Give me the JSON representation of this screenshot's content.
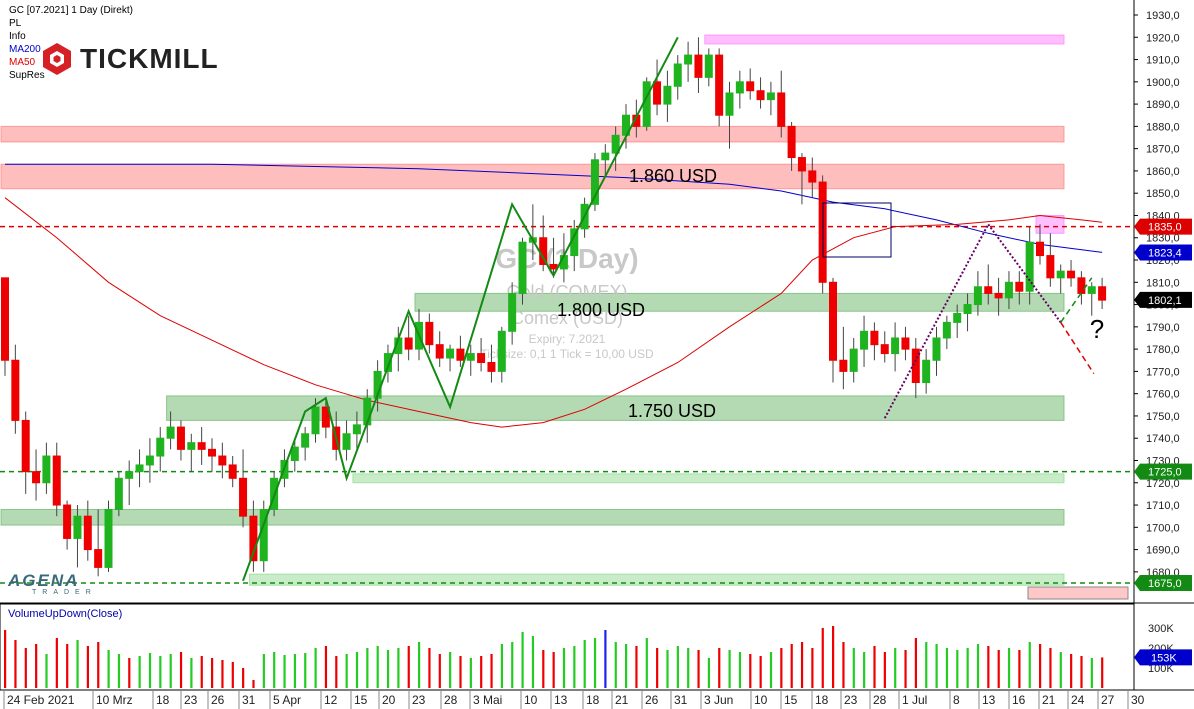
{
  "legend": {
    "instrument": "GC [07.2021] 1 Day (Direkt)",
    "items": [
      "PL",
      "Info",
      "MA200",
      "MA50",
      "SupRes"
    ],
    "colors": {
      "MA200": "#0000cc",
      "MA50": "#dd0000"
    }
  },
  "brand": {
    "name": "TICKMILL",
    "bottom_logo": "AGENA",
    "bottom_logo_sub": "TRADER"
  },
  "watermark": {
    "title": "GC (1 Day)",
    "subtitle": "Gold (COMEX)",
    "exchange": "Comex (USD)",
    "expiry": "Expiry: 7.2021",
    "tick": "Ticksize: 0,1  1 Tick = 10,00 USD"
  },
  "zone_labels": [
    "1.860 USD",
    "1.800 USD",
    "1.750 USD"
  ],
  "question_mark": "?",
  "price_axis": {
    "ticks": [
      "1930,0",
      "1920,0",
      "1910,0",
      "1900,0",
      "1890,0",
      "1880,0",
      "1870,0",
      "1860,0",
      "1850,0",
      "1840,0",
      "1830,0",
      "1820,0",
      "1810,0",
      "1800,0",
      "1790,0",
      "1780,0",
      "1770,0",
      "1760,0",
      "1750,0",
      "1740,0",
      "1730,0",
      "1720,0",
      "1710,0",
      "1700,0",
      "1690,0",
      "1680,0"
    ],
    "markers": [
      {
        "label": "1835,0",
        "price": 1835,
        "color": "#dd0000"
      },
      {
        "label": "1823,4",
        "price": 1823.4,
        "color": "#0000cc"
      },
      {
        "label": "1802,1",
        "price": 1802.1,
        "color": "#000000"
      },
      {
        "label": "1725,0",
        "price": 1725,
        "color": "#138a13"
      },
      {
        "label": "1675,0",
        "price": 1675,
        "color": "#138a13"
      }
    ]
  },
  "volume_panel": {
    "title": "VolumeUpDown(Close)",
    "ticks": [
      "300K",
      "200K",
      "100K"
    ],
    "marker": "153K",
    "marker_color": "#0000cc"
  },
  "date_axis": [
    "24 Feb 2021",
    "10 Mrz",
    "18",
    "23",
    "26",
    "31",
    "5 Apr",
    "12",
    "15",
    "20",
    "23",
    "28",
    "3 Mai",
    "10",
    "13",
    "18",
    "21",
    "26",
    "31",
    "3 Jun",
    "10",
    "15",
    "18",
    "23",
    "28",
    "1 Jul",
    "8",
    "13",
    "16",
    "21",
    "24",
    "27",
    "30"
  ],
  "chart_data": {
    "type": "candlestick",
    "title": "GC [07.2021] 1 Day (Direkt)",
    "ylim": [
      1672,
      1938
    ],
    "levels": [
      {
        "price": 1835,
        "style": "dashed",
        "color": "#dd0000"
      },
      {
        "price": 1725,
        "style": "dashed",
        "color": "#138a13"
      },
      {
        "price": 1675,
        "style": "dashed",
        "color": "#138a13"
      }
    ],
    "zones": [
      {
        "low": 1917,
        "high": 1921,
        "color": "#ff88ff",
        "from_bar": 68,
        "to_bar": 106
      },
      {
        "low": 1873,
        "high": 1880,
        "color": "#ff8888",
        "from_bar": 0,
        "to_bar": 106
      },
      {
        "low": 1852,
        "high": 1863,
        "color": "#ff8888",
        "from_bar": 0,
        "to_bar": 106
      },
      {
        "low": 1832,
        "high": 1840,
        "color": "#ff88ff",
        "from_bar": 100,
        "to_bar": 106
      },
      {
        "low": 1797,
        "high": 1805,
        "color": "#77bb77",
        "from_bar": 40,
        "to_bar": 106
      },
      {
        "low": 1748,
        "high": 1759,
        "color": "#77bb77",
        "from_bar": 16,
        "to_bar": 106
      },
      {
        "low": 1720,
        "high": 1724,
        "color": "#99dd99",
        "from_bar": 34,
        "to_bar": 106
      },
      {
        "low": 1701,
        "high": 1708,
        "color": "#77bb77",
        "from_bar": 0,
        "to_bar": 106
      },
      {
        "low": 1674,
        "high": 1679,
        "color": "#99dd99",
        "from_bar": 24,
        "to_bar": 106
      }
    ],
    "ohlc": [
      [
        1812,
        1812,
        1768,
        1775
      ],
      [
        1775,
        1782,
        1742,
        1748
      ],
      [
        1748,
        1752,
        1715,
        1725
      ],
      [
        1725,
        1735,
        1712,
        1720
      ],
      [
        1720,
        1738,
        1715,
        1732
      ],
      [
        1732,
        1738,
        1705,
        1710
      ],
      [
        1710,
        1712,
        1690,
        1695
      ],
      [
        1695,
        1710,
        1682,
        1705
      ],
      [
        1705,
        1712,
        1685,
        1690
      ],
      [
        1690,
        1708,
        1678,
        1682
      ],
      [
        1682,
        1712,
        1680,
        1708
      ],
      [
        1708,
        1725,
        1705,
        1722
      ],
      [
        1722,
        1730,
        1710,
        1725
      ],
      [
        1725,
        1735,
        1718,
        1728
      ],
      [
        1728,
        1740,
        1720,
        1732
      ],
      [
        1732,
        1745,
        1725,
        1740
      ],
      [
        1740,
        1752,
        1735,
        1745
      ],
      [
        1745,
        1748,
        1730,
        1735
      ],
      [
        1735,
        1742,
        1725,
        1738
      ],
      [
        1738,
        1745,
        1728,
        1735
      ],
      [
        1735,
        1740,
        1725,
        1732
      ],
      [
        1732,
        1738,
        1722,
        1728
      ],
      [
        1728,
        1732,
        1718,
        1722
      ],
      [
        1722,
        1735,
        1700,
        1705
      ],
      [
        1705,
        1712,
        1680,
        1685
      ],
      [
        1685,
        1712,
        1680,
        1708
      ],
      [
        1708,
        1725,
        1705,
        1722
      ],
      [
        1722,
        1735,
        1718,
        1730
      ],
      [
        1730,
        1740,
        1725,
        1736
      ],
      [
        1736,
        1745,
        1730,
        1742
      ],
      [
        1742,
        1758,
        1738,
        1754
      ],
      [
        1754,
        1758,
        1740,
        1745
      ],
      [
        1745,
        1752,
        1730,
        1735
      ],
      [
        1735,
        1748,
        1730,
        1742
      ],
      [
        1742,
        1752,
        1735,
        1746
      ],
      [
        1746,
        1762,
        1738,
        1758
      ],
      [
        1758,
        1775,
        1752,
        1770
      ],
      [
        1770,
        1782,
        1765,
        1778
      ],
      [
        1778,
        1790,
        1770,
        1785
      ],
      [
        1785,
        1795,
        1775,
        1780
      ],
      [
        1780,
        1798,
        1775,
        1792
      ],
      [
        1792,
        1796,
        1778,
        1782
      ],
      [
        1782,
        1788,
        1772,
        1776
      ],
      [
        1776,
        1782,
        1770,
        1780
      ],
      [
        1780,
        1786,
        1772,
        1775
      ],
      [
        1775,
        1782,
        1768,
        1778
      ],
      [
        1778,
        1785,
        1770,
        1774
      ],
      [
        1774,
        1782,
        1765,
        1770
      ],
      [
        1770,
        1790,
        1765,
        1788
      ],
      [
        1788,
        1810,
        1782,
        1805
      ],
      [
        1805,
        1830,
        1800,
        1828
      ],
      [
        1828,
        1845,
        1820,
        1830
      ],
      [
        1830,
        1840,
        1815,
        1818
      ],
      [
        1818,
        1830,
        1812,
        1816
      ],
      [
        1816,
        1832,
        1810,
        1822
      ],
      [
        1822,
        1838,
        1815,
        1834
      ],
      [
        1834,
        1848,
        1830,
        1845
      ],
      [
        1845,
        1868,
        1842,
        1865
      ],
      [
        1865,
        1872,
        1858,
        1868
      ],
      [
        1868,
        1880,
        1860,
        1876
      ],
      [
        1876,
        1890,
        1870,
        1885
      ],
      [
        1885,
        1892,
        1875,
        1880
      ],
      [
        1880,
        1902,
        1878,
        1900
      ],
      [
        1900,
        1910,
        1885,
        1890
      ],
      [
        1890,
        1905,
        1882,
        1898
      ],
      [
        1898,
        1912,
        1892,
        1908
      ],
      [
        1908,
        1918,
        1900,
        1912
      ],
      [
        1912,
        1920,
        1895,
        1902
      ],
      [
        1902,
        1915,
        1898,
        1912
      ],
      [
        1912,
        1915,
        1880,
        1885
      ],
      [
        1885,
        1900,
        1870,
        1895
      ],
      [
        1895,
        1905,
        1888,
        1900
      ],
      [
        1900,
        1906,
        1892,
        1896
      ],
      [
        1896,
        1902,
        1888,
        1892
      ],
      [
        1892,
        1900,
        1885,
        1895
      ],
      [
        1895,
        1905,
        1875,
        1880
      ],
      [
        1880,
        1882,
        1860,
        1866
      ],
      [
        1866,
        1868,
        1845,
        1860
      ],
      [
        1860,
        1866,
        1848,
        1855
      ],
      [
        1855,
        1858,
        1805,
        1810
      ],
      [
        1810,
        1812,
        1765,
        1775
      ],
      [
        1775,
        1790,
        1762,
        1770
      ],
      [
        1770,
        1785,
        1765,
        1780
      ],
      [
        1780,
        1795,
        1772,
        1788
      ],
      [
        1788,
        1792,
        1775,
        1782
      ],
      [
        1782,
        1788,
        1774,
        1778
      ],
      [
        1778,
        1792,
        1770,
        1785
      ],
      [
        1785,
        1790,
        1775,
        1780
      ],
      [
        1780,
        1785,
        1758,
        1765
      ],
      [
        1765,
        1780,
        1760,
        1775
      ],
      [
        1775,
        1790,
        1768,
        1785
      ],
      [
        1785,
        1795,
        1780,
        1792
      ],
      [
        1792,
        1800,
        1785,
        1796
      ],
      [
        1796,
        1805,
        1788,
        1800
      ],
      [
        1800,
        1815,
        1795,
        1808
      ],
      [
        1808,
        1818,
        1800,
        1805
      ],
      [
        1805,
        1812,
        1795,
        1803
      ],
      [
        1803,
        1815,
        1798,
        1810
      ],
      [
        1810,
        1815,
        1800,
        1806
      ],
      [
        1806,
        1835,
        1800,
        1828
      ],
      [
        1828,
        1836,
        1818,
        1822
      ],
      [
        1822,
        1832,
        1808,
        1812
      ],
      [
        1812,
        1818,
        1805,
        1815
      ],
      [
        1815,
        1820,
        1808,
        1812
      ],
      [
        1812,
        1815,
        1800,
        1805
      ],
      [
        1805,
        1810,
        1795,
        1808
      ],
      [
        1808,
        1812,
        1798,
        1802
      ]
    ],
    "volume": [
      [
        290,
        "red"
      ],
      [
        240,
        "red"
      ],
      [
        200,
        "red"
      ],
      [
        220,
        "red"
      ],
      [
        170,
        "green"
      ],
      [
        250,
        "red"
      ],
      [
        220,
        "red"
      ],
      [
        240,
        "green"
      ],
      [
        210,
        "red"
      ],
      [
        230,
        "red"
      ],
      [
        190,
        "green"
      ],
      [
        170,
        "green"
      ],
      [
        150,
        "red"
      ],
      [
        160,
        "green"
      ],
      [
        175,
        "green"
      ],
      [
        160,
        "green"
      ],
      [
        170,
        "green"
      ],
      [
        180,
        "red"
      ],
      [
        150,
        "green"
      ],
      [
        160,
        "red"
      ],
      [
        150,
        "red"
      ],
      [
        140,
        "red"
      ],
      [
        130,
        "red"
      ],
      [
        100,
        "red"
      ],
      [
        40,
        "red"
      ],
      [
        170,
        "green"
      ],
      [
        180,
        "green"
      ],
      [
        165,
        "green"
      ],
      [
        170,
        "green"
      ],
      [
        175,
        "green"
      ],
      [
        200,
        "green"
      ],
      [
        210,
        "red"
      ],
      [
        160,
        "red"
      ],
      [
        170,
        "green"
      ],
      [
        180,
        "green"
      ],
      [
        200,
        "green"
      ],
      [
        210,
        "green"
      ],
      [
        190,
        "green"
      ],
      [
        200,
        "green"
      ],
      [
        210,
        "red"
      ],
      [
        230,
        "green"
      ],
      [
        200,
        "red"
      ],
      [
        170,
        "red"
      ],
      [
        180,
        "green"
      ],
      [
        160,
        "red"
      ],
      [
        150,
        "green"
      ],
      [
        160,
        "red"
      ],
      [
        170,
        "red"
      ],
      [
        220,
        "green"
      ],
      [
        230,
        "green"
      ],
      [
        280,
        "green"
      ],
      [
        260,
        "green"
      ],
      [
        190,
        "red"
      ],
      [
        180,
        "red"
      ],
      [
        200,
        "green"
      ],
      [
        210,
        "green"
      ],
      [
        240,
        "green"
      ],
      [
        250,
        "green"
      ],
      [
        290,
        "blue"
      ],
      [
        230,
        "green"
      ],
      [
        220,
        "green"
      ],
      [
        210,
        "red"
      ],
      [
        250,
        "green"
      ],
      [
        200,
        "red"
      ],
      [
        190,
        "green"
      ],
      [
        210,
        "green"
      ],
      [
        200,
        "green"
      ],
      [
        190,
        "red"
      ],
      [
        150,
        "green"
      ],
      [
        200,
        "red"
      ],
      [
        190,
        "green"
      ],
      [
        180,
        "green"
      ],
      [
        170,
        "red"
      ],
      [
        160,
        "red"
      ],
      [
        180,
        "green"
      ],
      [
        200,
        "red"
      ],
      [
        220,
        "red"
      ],
      [
        230,
        "red"
      ],
      [
        200,
        "red"
      ],
      [
        300,
        "red"
      ],
      [
        310,
        "red"
      ],
      [
        230,
        "red"
      ],
      [
        200,
        "green"
      ],
      [
        180,
        "green"
      ],
      [
        210,
        "red"
      ],
      [
        180,
        "red"
      ],
      [
        200,
        "green"
      ],
      [
        190,
        "red"
      ],
      [
        250,
        "red"
      ],
      [
        230,
        "green"
      ],
      [
        220,
        "green"
      ],
      [
        200,
        "green"
      ],
      [
        190,
        "green"
      ],
      [
        200,
        "green"
      ],
      [
        220,
        "green"
      ],
      [
        210,
        "red"
      ],
      [
        190,
        "red"
      ],
      [
        200,
        "green"
      ],
      [
        190,
        "red"
      ],
      [
        230,
        "green"
      ],
      [
        220,
        "red"
      ],
      [
        200,
        "red"
      ],
      [
        180,
        "green"
      ],
      [
        170,
        "red"
      ],
      [
        160,
        "red"
      ],
      [
        150,
        "green"
      ],
      [
        153,
        "red"
      ]
    ],
    "ma200": [
      [
        0,
        1863
      ],
      [
        20,
        1863
      ],
      [
        30,
        1862
      ],
      [
        40,
        1861
      ],
      [
        50,
        1859
      ],
      [
        60,
        1857
      ],
      [
        70,
        1854
      ],
      [
        75,
        1851
      ],
      [
        80,
        1846
      ],
      [
        85,
        1843
      ],
      [
        90,
        1838
      ],
      [
        95,
        1832
      ],
      [
        100,
        1827
      ],
      [
        106,
        1823.4
      ]
    ],
    "ma50": [
      [
        0,
        1848
      ],
      [
        5,
        1830
      ],
      [
        10,
        1810
      ],
      [
        15,
        1795
      ],
      [
        20,
        1784
      ],
      [
        25,
        1773
      ],
      [
        30,
        1764
      ],
      [
        35,
        1757
      ],
      [
        40,
        1752
      ],
      [
        45,
        1747
      ],
      [
        48,
        1745
      ],
      [
        52,
        1747
      ],
      [
        56,
        1753
      ],
      [
        60,
        1762
      ],
      [
        65,
        1774
      ],
      [
        70,
        1790
      ],
      [
        75,
        1805
      ],
      [
        78,
        1820
      ],
      [
        82,
        1830
      ],
      [
        86,
        1835
      ],
      [
        92,
        1836
      ],
      [
        97,
        1838
      ],
      [
        100,
        1840
      ],
      [
        104,
        1838
      ],
      [
        106,
        1837
      ]
    ]
  }
}
